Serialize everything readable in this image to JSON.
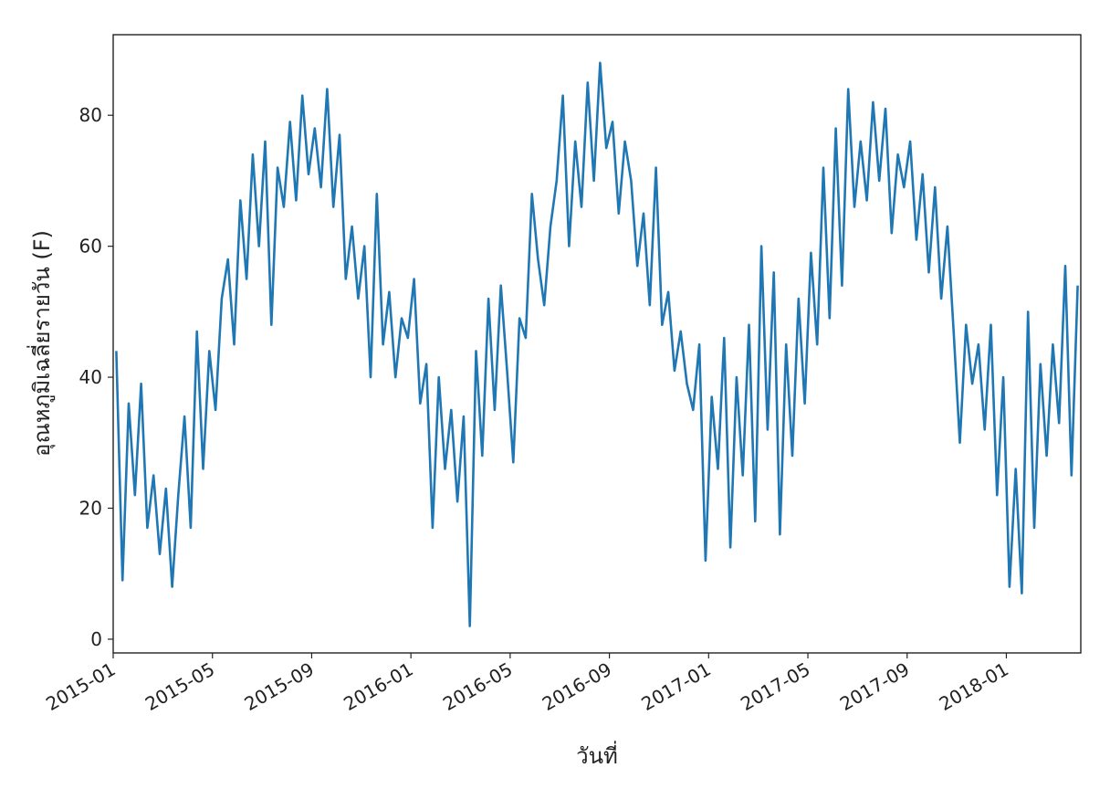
{
  "chart_data": {
    "type": "line",
    "x_label": "วันที่",
    "y_label": "อุณหภูมิเฉลี่ยรายวัน (F)",
    "x": [
      "2015-01",
      "2015-01",
      "2015-01",
      "2015-01",
      "2015-02",
      "2015-02",
      "2015-02",
      "2015-02",
      "2015-03",
      "2015-03",
      "2015-03",
      "2015-03",
      "2015-04",
      "2015-04",
      "2015-04",
      "2015-04",
      "2015-05",
      "2015-05",
      "2015-05",
      "2015-05",
      "2015-06",
      "2015-06",
      "2015-06",
      "2015-06",
      "2015-07",
      "2015-07",
      "2015-07",
      "2015-07",
      "2015-08",
      "2015-08",
      "2015-08",
      "2015-08",
      "2015-09",
      "2015-09",
      "2015-09",
      "2015-09",
      "2015-10",
      "2015-10",
      "2015-10",
      "2015-10",
      "2015-11",
      "2015-11",
      "2015-11",
      "2015-11",
      "2015-12",
      "2015-12",
      "2015-12",
      "2015-12",
      "2016-01",
      "2016-01",
      "2016-01",
      "2016-01",
      "2016-02",
      "2016-02",
      "2016-02",
      "2016-02",
      "2016-03",
      "2016-03",
      "2016-03",
      "2016-03",
      "2016-04",
      "2016-04",
      "2016-04",
      "2016-04",
      "2016-05",
      "2016-05",
      "2016-05",
      "2016-05",
      "2016-06",
      "2016-06",
      "2016-06",
      "2016-06",
      "2016-07",
      "2016-07",
      "2016-07",
      "2016-07",
      "2016-08",
      "2016-08",
      "2016-08",
      "2016-08",
      "2016-09",
      "2016-09",
      "2016-09",
      "2016-09",
      "2016-10",
      "2016-10",
      "2016-10",
      "2016-10",
      "2016-11",
      "2016-11",
      "2016-11",
      "2016-11",
      "2016-12",
      "2016-12",
      "2016-12",
      "2016-12",
      "2017-01",
      "2017-01",
      "2017-01",
      "2017-01",
      "2017-02",
      "2017-02",
      "2017-02",
      "2017-02",
      "2017-03",
      "2017-03",
      "2017-03",
      "2017-03",
      "2017-04",
      "2017-04",
      "2017-04",
      "2017-04",
      "2017-05",
      "2017-05",
      "2017-05",
      "2017-05",
      "2017-06",
      "2017-06",
      "2017-06",
      "2017-06",
      "2017-07",
      "2017-07",
      "2017-07",
      "2017-07",
      "2017-08",
      "2017-08",
      "2017-08",
      "2017-08",
      "2017-09",
      "2017-09",
      "2017-09",
      "2017-09",
      "2017-10",
      "2017-10",
      "2017-10",
      "2017-10",
      "2017-11",
      "2017-11",
      "2017-11",
      "2017-11",
      "2017-12",
      "2017-12",
      "2017-12",
      "2017-12",
      "2018-01",
      "2018-01",
      "2018-01",
      "2018-01",
      "2018-02",
      "2018-02",
      "2018-02",
      "2018-02",
      "2018-03",
      "2018-03",
      "2018-03",
      "2018-03"
    ],
    "series": [
      {
        "color": "#1f77b4",
        "values": [
          44,
          9,
          36,
          22,
          39,
          17,
          25,
          13,
          23,
          8,
          22,
          34,
          17,
          47,
          26,
          44,
          35,
          52,
          58,
          45,
          67,
          55,
          74,
          60,
          76,
          48,
          72,
          66,
          79,
          67,
          83,
          71,
          78,
          69,
          84,
          66,
          77,
          55,
          63,
          52,
          60,
          40,
          68,
          45,
          53,
          40,
          49,
          46,
          55,
          36,
          42,
          17,
          40,
          26,
          35,
          21,
          34,
          2,
          44,
          28,
          52,
          35,
          54,
          41,
          27,
          49,
          46,
          68,
          58,
          51,
          63,
          70,
          83,
          60,
          76,
          66,
          85,
          70,
          88,
          75,
          79,
          65,
          76,
          70,
          57,
          65,
          51,
          72,
          48,
          53,
          41,
          47,
          39,
          35,
          45,
          12,
          37,
          26,
          46,
          14,
          40,
          25,
          48,
          18,
          60,
          32,
          56,
          16,
          45,
          28,
          52,
          36,
          59,
          45,
          72,
          49,
          78,
          54,
          84,
          66,
          76,
          67,
          82,
          70,
          81,
          62,
          74,
          69,
          76,
          61,
          71,
          56,
          69,
          52,
          63,
          47,
          30,
          48,
          39,
          45,
          32,
          48,
          22,
          40,
          8,
          26,
          7,
          50,
          17,
          42,
          28,
          45,
          33,
          57,
          25,
          54
        ]
      }
    ],
    "xlim": [
      "2015-01",
      "2018-04"
    ],
    "xticks": [
      "2015-01",
      "2015-05",
      "2015-09",
      "2016-01",
      "2016-05",
      "2016-09",
      "2017-01",
      "2017-05",
      "2017-09",
      "2018-01"
    ],
    "ylim": [
      -2.1,
      92.3
    ],
    "yticks": [
      0,
      20,
      40,
      60,
      80
    ]
  }
}
